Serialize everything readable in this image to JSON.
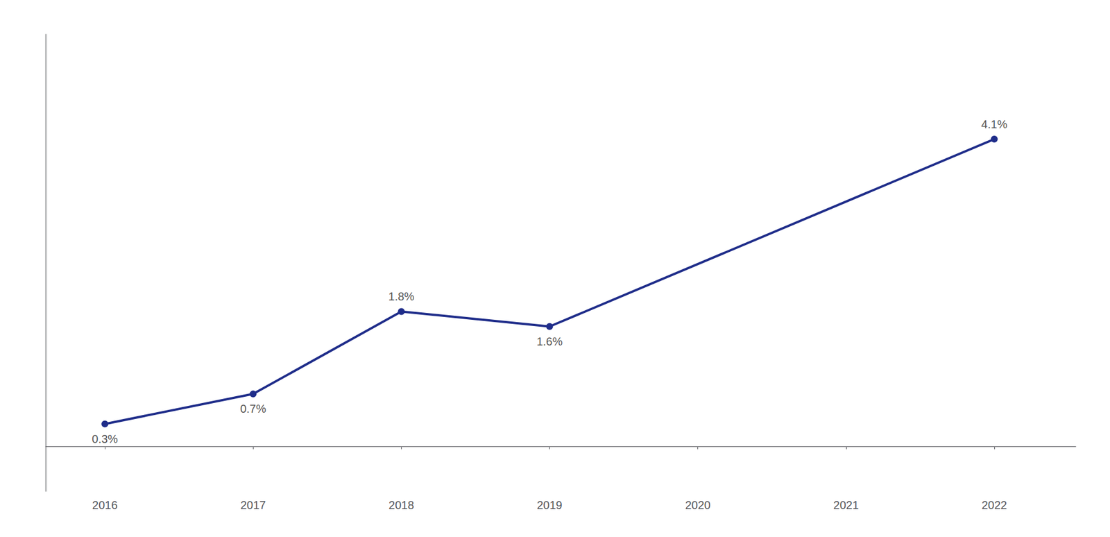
{
  "chart_data": {
    "type": "line",
    "x": [
      2016,
      2017,
      2018,
      2019,
      2022
    ],
    "values": [
      0.3,
      0.7,
      1.8,
      1.6,
      4.1
    ],
    "value_labels": [
      "0.3%",
      "0.7%",
      "1.8%",
      "1.6%",
      "4.1%"
    ],
    "data_labels": true,
    "color": "#1f2d8a",
    "marker": "circle",
    "xlim": [
      2015.6,
      2022.55
    ],
    "xticks": [
      2016,
      2017,
      2018,
      2019,
      2020,
      2021,
      2022
    ],
    "ylim": [
      -0.6,
      5.5
    ],
    "tick_labels": "x",
    "grid": false
  }
}
